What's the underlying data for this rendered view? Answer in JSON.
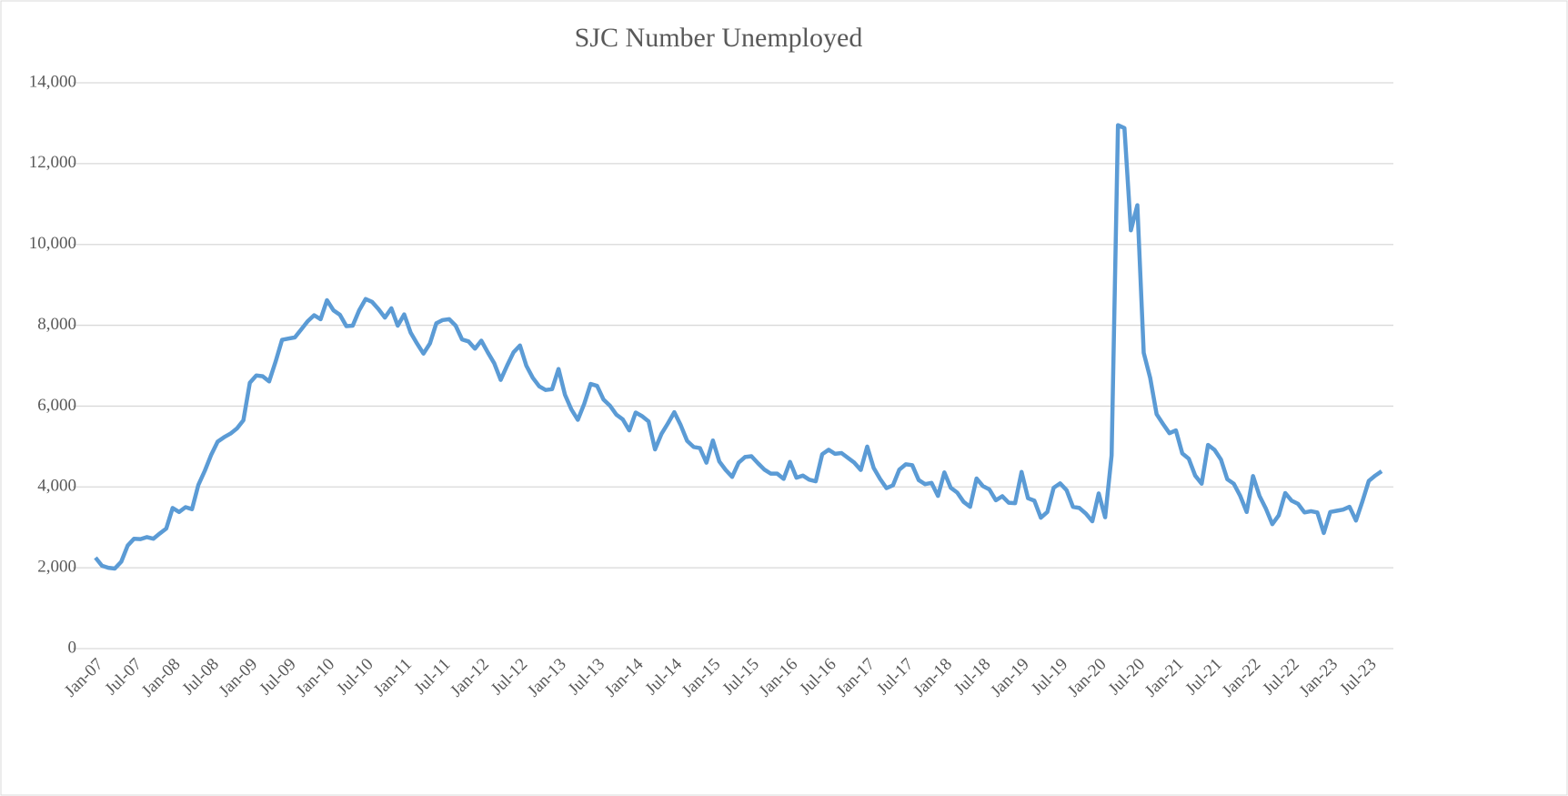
{
  "chart_data": {
    "type": "line",
    "title": "SJC Number Unemployed",
    "categories": [
      "Jan-07",
      null,
      null,
      null,
      null,
      null,
      "Jul-07",
      null,
      null,
      null,
      null,
      null,
      "Jan-08",
      null,
      null,
      null,
      null,
      null,
      "Jul-08",
      null,
      null,
      null,
      null,
      null,
      "Jan-09",
      null,
      null,
      null,
      null,
      null,
      "Jul-09",
      null,
      null,
      null,
      null,
      null,
      "Jan-10",
      null,
      null,
      null,
      null,
      null,
      "Jul-10",
      null,
      null,
      null,
      null,
      null,
      "Jan-11",
      null,
      null,
      null,
      null,
      null,
      "Jul-11",
      null,
      null,
      null,
      null,
      null,
      "Jan-12",
      null,
      null,
      null,
      null,
      null,
      "Jul-12",
      null,
      null,
      null,
      null,
      null,
      "Jan-13",
      null,
      null,
      null,
      null,
      null,
      "Jul-13",
      null,
      null,
      null,
      null,
      null,
      "Jan-14",
      null,
      null,
      null,
      null,
      null,
      "Jul-14",
      null,
      null,
      null,
      null,
      null,
      "Jan-15",
      null,
      null,
      null,
      null,
      null,
      "Jul-15",
      null,
      null,
      null,
      null,
      null,
      "Jan-16",
      null,
      null,
      null,
      null,
      null,
      "Jul-16",
      null,
      null,
      null,
      null,
      null,
      "Jan-17",
      null,
      null,
      null,
      null,
      null,
      "Jul-17",
      null,
      null,
      null,
      null,
      null,
      "Jan-18",
      null,
      null,
      null,
      null,
      null,
      "Jul-18",
      null,
      null,
      null,
      null,
      null,
      "Jan-19",
      null,
      null,
      null,
      null,
      null,
      "Jul-19",
      null,
      null,
      null,
      null,
      null,
      "Jan-20",
      null,
      null,
      null,
      null,
      null,
      "Jul-20",
      null,
      null,
      null,
      null,
      null,
      "Jan-21",
      null,
      null,
      null,
      null,
      null,
      "Jul-21",
      null,
      null,
      null,
      null,
      null,
      "Jan-22",
      null,
      null,
      null,
      null,
      null,
      "Jul-22",
      null,
      null,
      null,
      null,
      null,
      "Jan-23",
      null,
      null,
      null,
      null,
      null,
      "Jul-23",
      null,
      null
    ],
    "series": [
      {
        "name": "SJC Number Unemployed",
        "color": "#5b9bd5",
        "values": [
          2250,
          2050,
          2000,
          1980,
          2150,
          2550,
          2720,
          2710,
          2760,
          2720,
          2850,
          2970,
          3480,
          3380,
          3500,
          3450,
          4050,
          4400,
          4800,
          5120,
          5230,
          5320,
          5450,
          5650,
          6580,
          6760,
          6740,
          6610,
          7100,
          7640,
          7670,
          7700,
          7900,
          8100,
          8250,
          8150,
          8620,
          8370,
          8260,
          7980,
          7990,
          8370,
          8650,
          8580,
          8400,
          8190,
          8420,
          7990,
          8270,
          7820,
          7550,
          7300,
          7550,
          8050,
          8130,
          8150,
          7990,
          7650,
          7600,
          7420,
          7620,
          7330,
          7060,
          6650,
          7000,
          7330,
          7500,
          7000,
          6700,
          6490,
          6400,
          6420,
          6920,
          6280,
          5920,
          5660,
          6060,
          6550,
          6500,
          6160,
          6010,
          5790,
          5670,
          5400,
          5840,
          5750,
          5620,
          4930,
          5310,
          5570,
          5850,
          5530,
          5140,
          4990,
          4960,
          4600,
          5150,
          4630,
          4420,
          4250,
          4600,
          4740,
          4760,
          4590,
          4430,
          4330,
          4330,
          4200,
          4620,
          4230,
          4280,
          4180,
          4140,
          4810,
          4920,
          4820,
          4840,
          4720,
          4600,
          4420,
          5000,
          4470,
          4200,
          3970,
          4040,
          4430,
          4560,
          4540,
          4170,
          4070,
          4100,
          3780,
          4360,
          3980,
          3860,
          3630,
          3510,
          4210,
          4020,
          3940,
          3670,
          3770,
          3610,
          3600,
          4370,
          3720,
          3660,
          3240,
          3380,
          3980,
          4090,
          3920,
          3510,
          3480,
          3340,
          3150,
          3840,
          3250,
          4780,
          12950,
          12880,
          10350,
          10970,
          7320,
          6700,
          5800,
          5560,
          5330,
          5400,
          4830,
          4700,
          4280,
          4080,
          5040,
          4920,
          4680,
          4190,
          4080,
          3780,
          3380,
          4270,
          3780,
          3460,
          3080,
          3300,
          3850,
          3660,
          3580,
          3370,
          3400,
          3370,
          2860,
          3380,
          3410,
          3440,
          3510,
          3170,
          3640,
          4150,
          4280,
          4390
        ]
      }
    ],
    "ylim": [
      0,
      14000
    ],
    "yticks": [
      0,
      {
        "value": 2000,
        "label": "2,000"
      },
      {
        "value": 4000,
        "label": "4,000"
      },
      {
        "value": 6000,
        "label": "6,000"
      },
      {
        "value": 8000,
        "label": "8,000"
      },
      {
        "value": 10000,
        "label": "10,000"
      },
      {
        "value": 12000,
        "label": "12,000"
      },
      {
        "value": 14000,
        "label": "14,000"
      }
    ],
    "grid": true
  }
}
